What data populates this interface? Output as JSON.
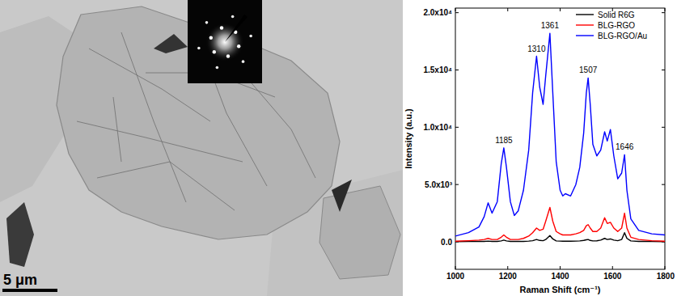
{
  "chart_data": {
    "type": "line",
    "x_label": "Raman Shift (cm⁻¹)",
    "y_label": "Intensity (a.u.)",
    "xlim": [
      1000,
      1800
    ],
    "xticks": [
      1000,
      1200,
      1400,
      1600,
      1800
    ],
    "ylim": [
      -2400,
      20400
    ],
    "yticks": [
      {
        "value": 0,
        "label": "0.0"
      },
      {
        "value": 5000,
        "label": "5.0x10³"
      },
      {
        "value": 10000,
        "label": "1.0x10⁴"
      },
      {
        "value": 15000,
        "label": "1.5x10⁴"
      },
      {
        "value": 20000,
        "label": "2.0x10⁴"
      }
    ],
    "grid": false,
    "legend": "upper right",
    "x": [
      1000,
      1050,
      1090,
      1110,
      1125,
      1140,
      1160,
      1175,
      1185,
      1195,
      1210,
      1225,
      1240,
      1260,
      1280,
      1295,
      1310,
      1322,
      1335,
      1345,
      1361,
      1372,
      1385,
      1400,
      1410,
      1420,
      1440,
      1460,
      1475,
      1490,
      1500,
      1507,
      1515,
      1525,
      1540,
      1555,
      1570,
      1580,
      1592,
      1605,
      1620,
      1635,
      1646,
      1655,
      1670,
      1700,
      1750,
      1800
    ],
    "series": [
      {
        "name": "Solid R6G",
        "color": "#000000",
        "values": [
          20,
          30,
          30,
          40,
          60,
          40,
          40,
          80,
          150,
          80,
          40,
          30,
          30,
          40,
          60,
          100,
          200,
          120,
          100,
          200,
          550,
          250,
          80,
          60,
          50,
          50,
          50,
          60,
          80,
          120,
          180,
          200,
          120,
          80,
          90,
          150,
          300,
          200,
          250,
          150,
          100,
          200,
          800,
          300,
          80,
          40,
          30,
          20
        ]
      },
      {
        "name": "BLG-RGO",
        "color": "#ff0000",
        "values": [
          50,
          100,
          150,
          200,
          300,
          200,
          200,
          400,
          600,
          400,
          200,
          200,
          200,
          300,
          500,
          800,
          1200,
          1000,
          1100,
          1800,
          3000,
          1800,
          900,
          700,
          600,
          600,
          600,
          700,
          800,
          1000,
          1400,
          1500,
          1200,
          900,
          900,
          1200,
          2100,
          1600,
          1700,
          1200,
          900,
          1200,
          2500,
          1200,
          400,
          200,
          100,
          50
        ]
      },
      {
        "name": "BLG-RGO/Au",
        "color": "#0000ff",
        "values": [
          500,
          800,
          1300,
          2200,
          3400,
          2500,
          3500,
          6800,
          8200,
          6500,
          3500,
          2300,
          2700,
          4500,
          8000,
          13000,
          16200,
          13500,
          12000,
          14500,
          18200,
          13000,
          7000,
          4500,
          4000,
          4200,
          4000,
          5000,
          6500,
          9500,
          13000,
          14300,
          12000,
          8500,
          7500,
          8000,
          9600,
          8800,
          9800,
          7500,
          5500,
          6000,
          7600,
          4500,
          2000,
          1000,
          700,
          600
        ]
      }
    ],
    "annotations": [
      {
        "text": "1185",
        "x": 1185,
        "y": 8200
      },
      {
        "text": "1310",
        "x": 1310,
        "y": 16200
      },
      {
        "text": "1361",
        "x": 1361,
        "y": 18200
      },
      {
        "text": "1507",
        "x": 1507,
        "y": 14300
      },
      {
        "text": "1646",
        "x": 1646,
        "y": 7600
      }
    ]
  },
  "micrograph": {
    "scale_bar": "5 μm"
  }
}
